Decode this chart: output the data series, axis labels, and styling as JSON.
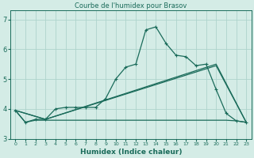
{
  "title": "Courbe de l'humidex pour Brasov",
  "xlabel": "Humidex (Indice chaleur)",
  "bg_color": "#d4ece6",
  "grid_color": "#aed4cc",
  "line_color": "#1a6b5a",
  "xlim": [
    -0.5,
    23.5
  ],
  "ylim": [
    3.0,
    7.3
  ],
  "yticks": [
    3,
    4,
    5,
    6,
    7
  ],
  "xticks": [
    0,
    1,
    2,
    3,
    4,
    5,
    6,
    7,
    8,
    9,
    10,
    11,
    12,
    13,
    14,
    15,
    16,
    17,
    18,
    19,
    20,
    21,
    22,
    23
  ],
  "series1_x": [
    0,
    1,
    2,
    3,
    4,
    5,
    6,
    7,
    8,
    9,
    10,
    11,
    12,
    13,
    14,
    15,
    16,
    17,
    18,
    19,
    20,
    21,
    22,
    23
  ],
  "series1_y": [
    3.95,
    3.55,
    3.65,
    3.65,
    4.0,
    4.05,
    4.05,
    4.05,
    4.05,
    4.35,
    5.0,
    5.4,
    5.5,
    6.65,
    6.75,
    6.2,
    5.8,
    5.75,
    5.45,
    5.5,
    4.65,
    3.85,
    3.6,
    3.55
  ],
  "series2_x": [
    0,
    1,
    2,
    3,
    4,
    5,
    6,
    7,
    8,
    9,
    10,
    11,
    12,
    13,
    14,
    15,
    16,
    17,
    18,
    19,
    20,
    21,
    22,
    23
  ],
  "series2_y": [
    3.95,
    3.55,
    3.62,
    3.62,
    3.62,
    3.62,
    3.62,
    3.62,
    3.62,
    3.62,
    3.62,
    3.62,
    3.62,
    3.62,
    3.62,
    3.62,
    3.62,
    3.62,
    3.62,
    3.62,
    3.62,
    3.62,
    3.6,
    3.55
  ],
  "series3_x": [
    0,
    3,
    20,
    23
  ],
  "series3_y": [
    3.95,
    3.65,
    5.5,
    3.55
  ],
  "series4_x": [
    0,
    3,
    20,
    23
  ],
  "series4_y": [
    3.95,
    3.65,
    5.45,
    3.55
  ]
}
